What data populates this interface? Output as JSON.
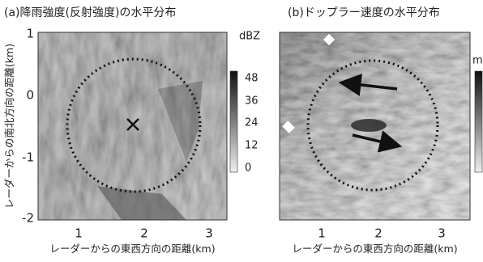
{
  "panels": [
    {
      "title": "(a)降雨強度(反射強度)の水平分布",
      "y_axis_label": "レーダーからの南北方向の距離(km)",
      "x_axis_label": "レーダーからの東西方向の距離(km)",
      "x_ticks": [
        "1",
        "2",
        "3"
      ],
      "y_ticks": [
        "1",
        "0",
        "-1",
        "-2"
      ],
      "colorbar": {
        "unit": "dBZ",
        "ticks": [
          "48",
          "36",
          "24",
          "12",
          "0"
        ]
      }
    },
    {
      "title": "(b)ドップラー速度の水平分布",
      "x_axis_label": "レーダーからの東西方向の距離(km)",
      "x_ticks": [
        "1",
        "2",
        "3"
      ],
      "colorbar": {
        "unit": "m"
      }
    }
  ]
}
